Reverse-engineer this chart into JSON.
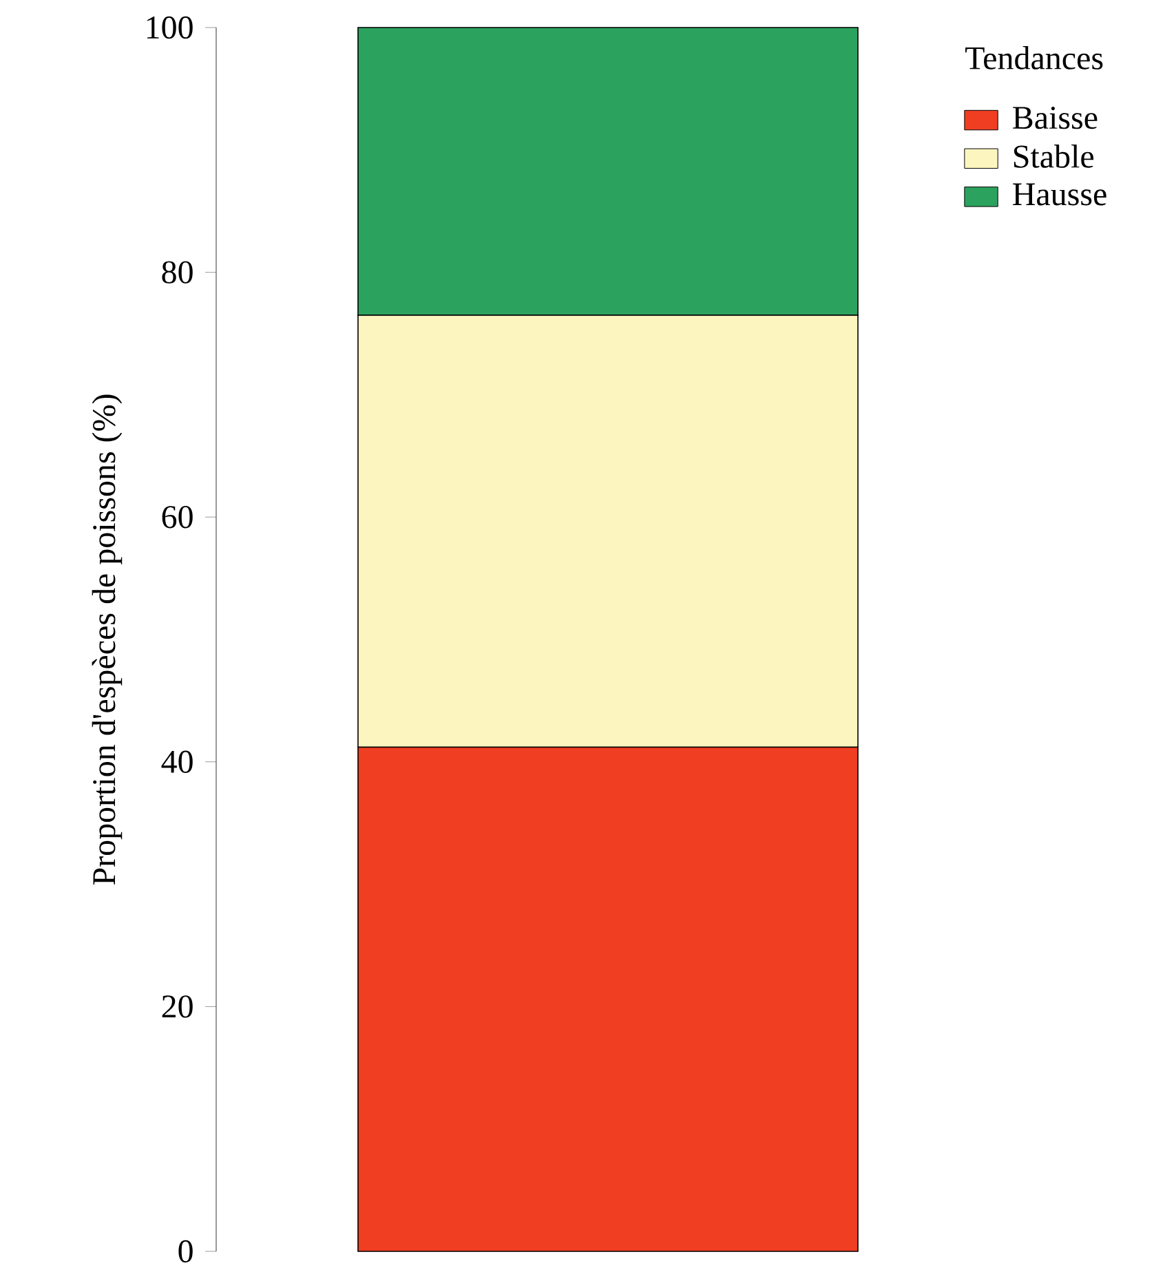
{
  "chart_data": {
    "type": "bar",
    "stacked": true,
    "ylabel": "Proportion d'espèces de poissons (%)",
    "legend_title": "Tendances",
    "legend": "top right",
    "categories": [
      null
    ],
    "series": [
      {
        "name": "Baisse",
        "color": "#ef3e22",
        "values": [
          41.2
        ]
      },
      {
        "name": "Stable",
        "color": "#fdf5bf",
        "values": [
          35.3
        ]
      },
      {
        "name": "Hausse",
        "color": "#2ca25f",
        "values": [
          23.5
        ]
      }
    ],
    "ylim": [
      0,
      100
    ],
    "yticks": [
      0,
      20,
      40,
      60,
      80,
      100
    ]
  }
}
